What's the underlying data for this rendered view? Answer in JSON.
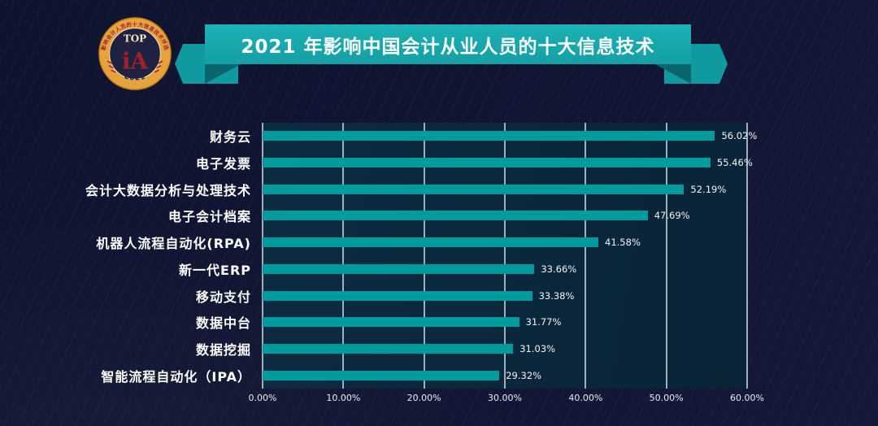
{
  "header": {
    "title": "2021 年影响中国会计从业人员的十大信息技术",
    "ribbon_color": "#149fa4",
    "logo": {
      "ring_text": "影响会计人员的十大信息技术评选",
      "top_label": "TOP",
      "monogram": "iA",
      "year": "2021",
      "band_color": "#e6a23c",
      "center_color": "#1e2240",
      "accent_red": "#9b2335"
    }
  },
  "chart_data": {
    "type": "bar",
    "orientation": "horizontal",
    "title": "2021 年影响中国会计从业人员的十大信息技术",
    "categories": [
      "财务云",
      "电子发票",
      "会计大数据分析与处理技术",
      "电子会计档案",
      "机器人流程自动化(RPA)",
      "新一代ERP",
      "移动支付",
      "数据中台",
      "数据挖掘",
      "智能流程自动化（IPA）"
    ],
    "values": [
      56.02,
      55.46,
      52.19,
      47.69,
      41.58,
      33.66,
      33.38,
      31.77,
      31.03,
      29.32
    ],
    "value_labels": [
      "56.02%",
      "55.46%",
      "52.19%",
      "47.69%",
      "41.58%",
      "33.66%",
      "33.38%",
      "31.77%",
      "31.03%",
      "29.32%"
    ],
    "xlim": [
      0,
      60
    ],
    "xticks": {
      "values": [
        0,
        10,
        20,
        30,
        40,
        50,
        60
      ],
      "labels": [
        "0.00%",
        "10.00%",
        "20.00%",
        "30.00%",
        "40.00%",
        "50.00%",
        "60.00%"
      ]
    },
    "grid": true,
    "legend": false,
    "bar_color": "#009b9d"
  }
}
